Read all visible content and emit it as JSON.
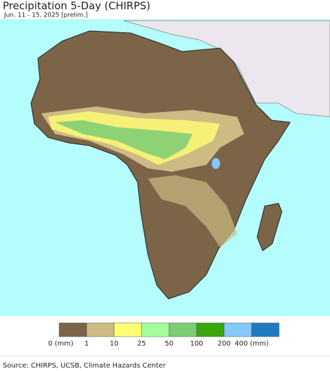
{
  "header": {
    "title": "Precipitation 5-Day (CHIRPS)",
    "subtitle": "Jun. 11 - 15, 2025 [prelim.]"
  },
  "legend": {
    "items": [
      {
        "color": "#7b6448",
        "label": "0 (mm)"
      },
      {
        "color": "#cdbb85",
        "label": "1"
      },
      {
        "color": "#ffff73",
        "label": "10"
      },
      {
        "color": "#a3ff9c",
        "label": "25"
      },
      {
        "color": "#7ccd74",
        "label": "50"
      },
      {
        "color": "#3aa60c",
        "label": "100"
      },
      {
        "color": "#85c9fa",
        "label": "200"
      },
      {
        "color": "#1f7bbd",
        "label": "400 (mm)"
      }
    ]
  },
  "source": "Source: CHIRPS, UCSB, Climate Hazards Center"
}
